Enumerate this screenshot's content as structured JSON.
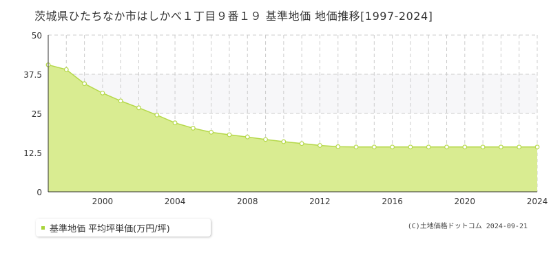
{
  "title": "茨城県ひたちなか市はしかべ１丁目９番１９ 基準地価 地価推移[1997-2024]",
  "legend": {
    "label": "基準地価 平均坪単価(万円/坪)"
  },
  "copyright": "(C)土地価格ドットコム 2024-09-21",
  "colors": {
    "fill": "#d9ec91",
    "line": "#b5d84a",
    "marker_fill": "#ffffff",
    "marker_stroke": "#b5d84a",
    "grid": "#cccccc",
    "band": "#f7f7f9",
    "legend_swatch": "#a8d43a"
  },
  "chart_data": {
    "type": "area",
    "x": [
      1997,
      1998,
      1999,
      2000,
      2001,
      2002,
      2003,
      2004,
      2005,
      2006,
      2007,
      2008,
      2009,
      2010,
      2011,
      2012,
      2013,
      2014,
      2015,
      2016,
      2017,
      2018,
      2019,
      2020,
      2021,
      2022,
      2023,
      2024
    ],
    "series": [
      {
        "name": "基準地価 平均坪単価(万円/坪)",
        "values": [
          40.5,
          39,
          34.5,
          31.5,
          29,
          26.8,
          24.5,
          22,
          20.3,
          19,
          18.2,
          17.5,
          16.7,
          16,
          15.4,
          14.8,
          14.4,
          14.3,
          14.3,
          14.3,
          14.3,
          14.3,
          14.3,
          14.3,
          14.3,
          14.3,
          14.3,
          14.3
        ]
      }
    ],
    "xlim": [
      1997,
      2024
    ],
    "ylim": [
      0,
      50
    ],
    "xticks": [
      "2000",
      "2004",
      "2008",
      "2012",
      "2016",
      "2020",
      "2024"
    ],
    "yticks": [
      "0",
      "12.5",
      "25",
      "37.5",
      "50"
    ],
    "grid": true,
    "shaded_band": [
      25,
      37.5
    ]
  }
}
